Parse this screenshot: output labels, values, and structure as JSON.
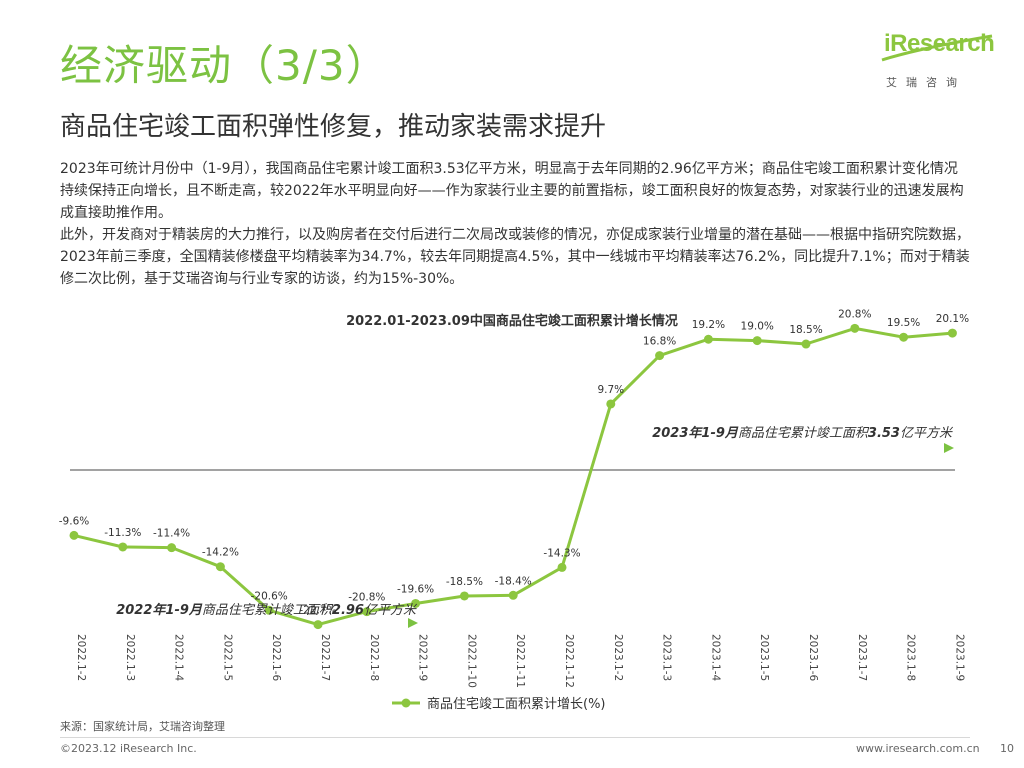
{
  "header": {
    "title": "经济驱动（3/3）",
    "subtitle": "商品住宅竣工面积弹性修复，推动家装需求提升"
  },
  "logo": {
    "brand": "iResearch",
    "cn": "艾瑞咨询"
  },
  "body": {
    "paragraph1": "2023年可统计月份中（1-9月），我国商品住宅累计竣工面积3.53亿平方米，明显高于去年同期的2.96亿平方米；商品住宅竣工面积累计变化情况持续保持正向增长，且不断走高，较2022年水平明显向好——作为家装行业主要的前置指标，竣工面积良好的恢复态势，对家装行业的迅速发展构成直接助推作用。",
    "paragraph2": "此外，开发商对于精装房的大力推行，以及购房者在交付后进行二次局改或装修的情况，亦促成家装行业增量的潜在基础——根据中指研究院数据，2023年前三季度，全国精装修楼盘平均精装率为34.7%，较去年同期提高4.5%，其中一线城市平均精装率达76.2%，同比提升7.1%；而对于精装修二次比例，基于艾瑞咨询与行业专家的访谈，约为15%-30%。"
  },
  "chart_data": {
    "type": "line",
    "title": "2022.01-2023.09中国商品住宅竣工面积累计增长情况",
    "categories": [
      "2022.1-2",
      "2022.1-3",
      "2022.1-4",
      "2022.1-5",
      "2022.1-6",
      "2022.1-7",
      "2022.1-8",
      "2022.1-9",
      "2022.1-10",
      "2022.1-11",
      "2022.1-12",
      "2023.1-2",
      "2023.1-3",
      "2023.1-4",
      "2023.1-5",
      "2023.1-6",
      "2023.1-7",
      "2023.1-8",
      "2023.1-9"
    ],
    "series": [
      {
        "name": "商品住宅竣工面积累计增长(%)",
        "values": [
          -9.6,
          -11.3,
          -11.4,
          -14.2,
          -20.6,
          -22.7,
          -20.8,
          -19.6,
          -18.5,
          -18.4,
          -14.3,
          9.7,
          16.8,
          19.2,
          19.0,
          18.5,
          20.8,
          19.5,
          20.1
        ]
      }
    ],
    "value_labels": [
      "-9.6%",
      "-11.3%",
      "-11.4%",
      "-14.2%",
      "-20.6%",
      "-22.7%",
      "-20.8%",
      "-19.6%",
      "-18.5%",
      "-18.4%",
      "-14.3%",
      "9.7%",
      "16.8%",
      "19.2%",
      "19.0%",
      "18.5%",
      "20.8%",
      "19.5%",
      "20.1%"
    ],
    "annotations": [
      {
        "bold_a": "2023年1-9月",
        "normal": "商品住宅累计竣工面积",
        "bold_b": "3.53",
        "tail": "亿平方米"
      },
      {
        "bold_a": "2022年1-9月",
        "normal": "商品住宅累计竣工面积",
        "bold_b": "2.96",
        "tail": "亿平方米"
      }
    ],
    "legend_position": "bottom",
    "grid": false,
    "color": "#8cc63f"
  },
  "footer": {
    "source": "来源：国家统计局，艾瑞咨询整理",
    "copyright": "©2023.12 iResearch Inc.",
    "website": "www.iresearch.com.cn",
    "page": "10"
  }
}
